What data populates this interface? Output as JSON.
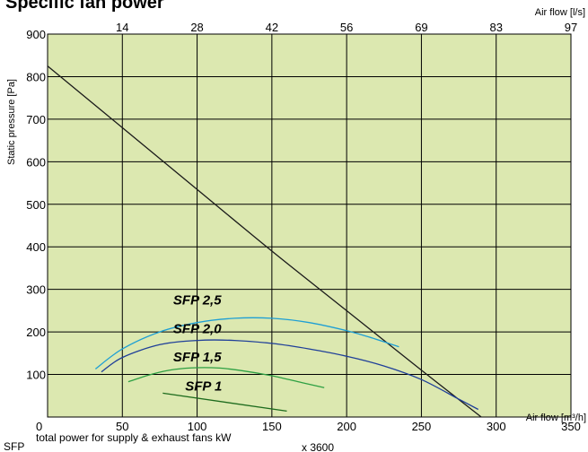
{
  "chart_data": {
    "type": "line",
    "title": "Specific fan power",
    "ylabel": "Static pressure [Pa]",
    "xlabel_bottom": "Air flow [m³/h]",
    "xlabel_top": "Air flow [l/s]",
    "xlim": [
      0,
      350
    ],
    "ylim": [
      0,
      900
    ],
    "x_ticks": [
      0,
      50,
      100,
      150,
      200,
      250,
      300,
      350
    ],
    "y_ticks": [
      0,
      100,
      200,
      300,
      400,
      500,
      600,
      700,
      800,
      900
    ],
    "top_ticks": [
      {
        "x": 50,
        "label": "14"
      },
      {
        "x": 100,
        "label": "28"
      },
      {
        "x": 150,
        "label": "42"
      },
      {
        "x": 200,
        "label": "56"
      },
      {
        "x": 250,
        "label": "69"
      },
      {
        "x": 300,
        "label": "83"
      },
      {
        "x": 350,
        "label": "97"
      }
    ],
    "grid": true,
    "background_color": "#dce8b0",
    "series": [
      {
        "role": "fan-curve",
        "color": "#1a1a1a",
        "points": [
          [
            0,
            825
          ],
          [
            50,
            680
          ],
          [
            100,
            535
          ],
          [
            150,
            390
          ],
          [
            200,
            250
          ],
          [
            250,
            110
          ],
          [
            290,
            0
          ]
        ]
      },
      {
        "name": "SFP 2,5",
        "color": "#1e9fd4",
        "points": [
          [
            32,
            113
          ],
          [
            50,
            160
          ],
          [
            75,
            200
          ],
          [
            100,
            222
          ],
          [
            125,
            232
          ],
          [
            150,
            232
          ],
          [
            175,
            222
          ],
          [
            200,
            203
          ],
          [
            215,
            188
          ],
          [
            235,
            165
          ]
        ],
        "label_at": [
          84,
          275
        ]
      },
      {
        "name": "SFP 2,0",
        "color": "#1f3f99",
        "points": [
          [
            36,
            106
          ],
          [
            50,
            140
          ],
          [
            75,
            170
          ],
          [
            100,
            180
          ],
          [
            125,
            180
          ],
          [
            150,
            173
          ],
          [
            175,
            160
          ],
          [
            200,
            143
          ],
          [
            225,
            120
          ],
          [
            250,
            88
          ],
          [
            275,
            42
          ],
          [
            288,
            18
          ]
        ],
        "label_at": [
          84,
          208
        ]
      },
      {
        "name": "SFP 1,5",
        "color": "#2ea043",
        "points": [
          [
            54,
            83
          ],
          [
            70,
            101
          ],
          [
            85,
            112
          ],
          [
            100,
            116
          ],
          [
            115,
            115
          ],
          [
            130,
            109
          ],
          [
            150,
            97
          ],
          [
            170,
            81
          ],
          [
            185,
            69
          ]
        ],
        "label_at": [
          84,
          141
        ]
      },
      {
        "name": "SFP 1",
        "color": "#1d6b1d",
        "points": [
          [
            77,
            56
          ],
          [
            160,
            14
          ]
        ],
        "label_at": [
          92,
          73
        ]
      }
    ],
    "series_labels": [
      "SFP 2,5",
      "SFP 2,0",
      "SFP 1,5",
      "SFP 1"
    ]
  },
  "formula": {
    "prefix": "SFP",
    "numerator": "total power for supply & exhaust fans kW",
    "multiplier": "x 3600"
  }
}
